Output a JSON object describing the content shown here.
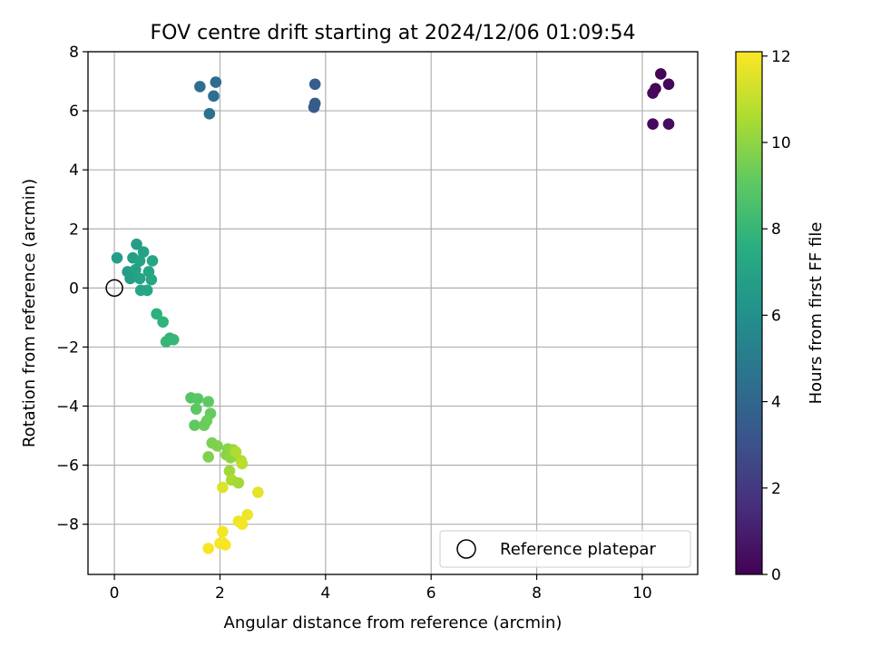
{
  "chart_data": {
    "type": "scatter",
    "title": "FOV centre drift starting at 2024/12/06 01:09:54",
    "xlabel": "Angular distance from reference (arcmin)",
    "ylabel": "Rotation from reference (arcmin)",
    "xlim": [
      -0.5,
      11.05
    ],
    "ylim": [
      -9.7,
      8.0
    ],
    "xticks": [
      0,
      2,
      4,
      6,
      8,
      10
    ],
    "yticks": [
      -8,
      -6,
      -4,
      -2,
      0,
      2,
      4,
      6,
      8
    ],
    "xtick_labels": [
      "0",
      "2",
      "4",
      "6",
      "8",
      "10"
    ],
    "ytick_labels": [
      "−8",
      "−6",
      "−4",
      "−2",
      "0",
      "2",
      "4",
      "6",
      "8"
    ],
    "grid": true,
    "legend": {
      "position": "lower right",
      "entries": [
        "Reference platepar"
      ]
    },
    "colorbar": {
      "label": "Hours from first FF file",
      "colormap": "viridis",
      "range": [
        0,
        12.1
      ],
      "ticks": [
        0,
        2,
        4,
        6,
        8,
        10,
        12
      ],
      "tick_labels": [
        "0",
        "2",
        "4",
        "6",
        "8",
        "10",
        "12"
      ]
    },
    "reference_point": {
      "x": 0,
      "y": 0
    },
    "points": [
      {
        "x": 10.35,
        "y": 7.25,
        "hours": 0.1
      },
      {
        "x": 10.25,
        "y": 6.75,
        "hours": 0.2
      },
      {
        "x": 10.5,
        "y": 6.9,
        "hours": 0.2
      },
      {
        "x": 10.2,
        "y": 6.6,
        "hours": 0.3
      },
      {
        "x": 10.2,
        "y": 5.55,
        "hours": 0.3
      },
      {
        "x": 10.5,
        "y": 5.55,
        "hours": 0.4
      },
      {
        "x": 3.8,
        "y": 6.9,
        "hours": 3.6
      },
      {
        "x": 3.8,
        "y": 6.25,
        "hours": 3.5
      },
      {
        "x": 3.78,
        "y": 6.12,
        "hours": 3.4
      },
      {
        "x": 1.62,
        "y": 6.82,
        "hours": 4.4
      },
      {
        "x": 1.92,
        "y": 6.97,
        "hours": 4.3
      },
      {
        "x": 1.88,
        "y": 6.5,
        "hours": 4.4
      },
      {
        "x": 1.8,
        "y": 5.9,
        "hours": 4.5
      },
      {
        "x": 0.05,
        "y": 1.02,
        "hours": 6.6
      },
      {
        "x": 0.42,
        "y": 1.48,
        "hours": 6.8
      },
      {
        "x": 0.55,
        "y": 1.22,
        "hours": 6.9
      },
      {
        "x": 0.35,
        "y": 1.02,
        "hours": 6.8
      },
      {
        "x": 0.48,
        "y": 0.92,
        "hours": 7.0
      },
      {
        "x": 0.72,
        "y": 0.92,
        "hours": 7.2
      },
      {
        "x": 0.25,
        "y": 0.55,
        "hours": 6.7
      },
      {
        "x": 0.4,
        "y": 0.62,
        "hours": 6.9
      },
      {
        "x": 0.65,
        "y": 0.55,
        "hours": 7.1
      },
      {
        "x": 0.3,
        "y": 0.32,
        "hours": 6.8
      },
      {
        "x": 0.48,
        "y": 0.32,
        "hours": 7.0
      },
      {
        "x": 0.7,
        "y": 0.28,
        "hours": 7.2
      },
      {
        "x": 0.5,
        "y": -0.08,
        "hours": 7.1
      },
      {
        "x": 0.62,
        "y": -0.08,
        "hours": 7.2
      },
      {
        "x": 0.8,
        "y": -0.88,
        "hours": 7.7
      },
      {
        "x": 0.92,
        "y": -1.15,
        "hours": 7.8
      },
      {
        "x": 1.05,
        "y": -1.7,
        "hours": 7.9
      },
      {
        "x": 0.98,
        "y": -1.82,
        "hours": 8.0
      },
      {
        "x": 1.12,
        "y": -1.75,
        "hours": 8.0
      },
      {
        "x": 1.45,
        "y": -3.72,
        "hours": 8.8
      },
      {
        "x": 1.58,
        "y": -3.75,
        "hours": 8.9
      },
      {
        "x": 1.78,
        "y": -3.85,
        "hours": 9.1
      },
      {
        "x": 1.55,
        "y": -4.1,
        "hours": 9.0
      },
      {
        "x": 1.82,
        "y": -4.25,
        "hours": 9.2
      },
      {
        "x": 1.75,
        "y": -4.5,
        "hours": 9.3
      },
      {
        "x": 1.52,
        "y": -4.65,
        "hours": 9.1
      },
      {
        "x": 1.7,
        "y": -4.65,
        "hours": 9.3
      },
      {
        "x": 1.85,
        "y": -5.25,
        "hours": 9.6
      },
      {
        "x": 1.95,
        "y": -5.35,
        "hours": 9.7
      },
      {
        "x": 2.15,
        "y": -5.45,
        "hours": 9.9
      },
      {
        "x": 2.12,
        "y": -5.65,
        "hours": 9.9
      },
      {
        "x": 2.2,
        "y": -5.75,
        "hours": 10.0
      },
      {
        "x": 1.78,
        "y": -5.72,
        "hours": 9.7
      },
      {
        "x": 2.25,
        "y": -5.48,
        "hours": 10.1
      },
      {
        "x": 2.3,
        "y": -5.55,
        "hours": 10.6
      },
      {
        "x": 2.4,
        "y": -5.85,
        "hours": 10.7
      },
      {
        "x": 2.42,
        "y": -5.95,
        "hours": 10.8
      },
      {
        "x": 2.18,
        "y": -6.2,
        "hours": 10.3
      },
      {
        "x": 2.22,
        "y": -6.5,
        "hours": 10.5
      },
      {
        "x": 2.35,
        "y": -6.6,
        "hours": 10.4
      },
      {
        "x": 2.05,
        "y": -6.75,
        "hours": 11.5
      },
      {
        "x": 2.72,
        "y": -6.92,
        "hours": 11.6
      },
      {
        "x": 2.52,
        "y": -7.68,
        "hours": 11.8
      },
      {
        "x": 2.35,
        "y": -7.9,
        "hours": 11.8
      },
      {
        "x": 2.42,
        "y": -8.0,
        "hours": 11.9
      },
      {
        "x": 2.05,
        "y": -8.25,
        "hours": 11.9
      },
      {
        "x": 2.0,
        "y": -8.65,
        "hours": 12.0
      },
      {
        "x": 2.1,
        "y": -8.7,
        "hours": 12.0
      },
      {
        "x": 2.05,
        "y": -8.62,
        "hours": 11.95
      },
      {
        "x": 1.78,
        "y": -8.82,
        "hours": 12.0
      }
    ]
  }
}
